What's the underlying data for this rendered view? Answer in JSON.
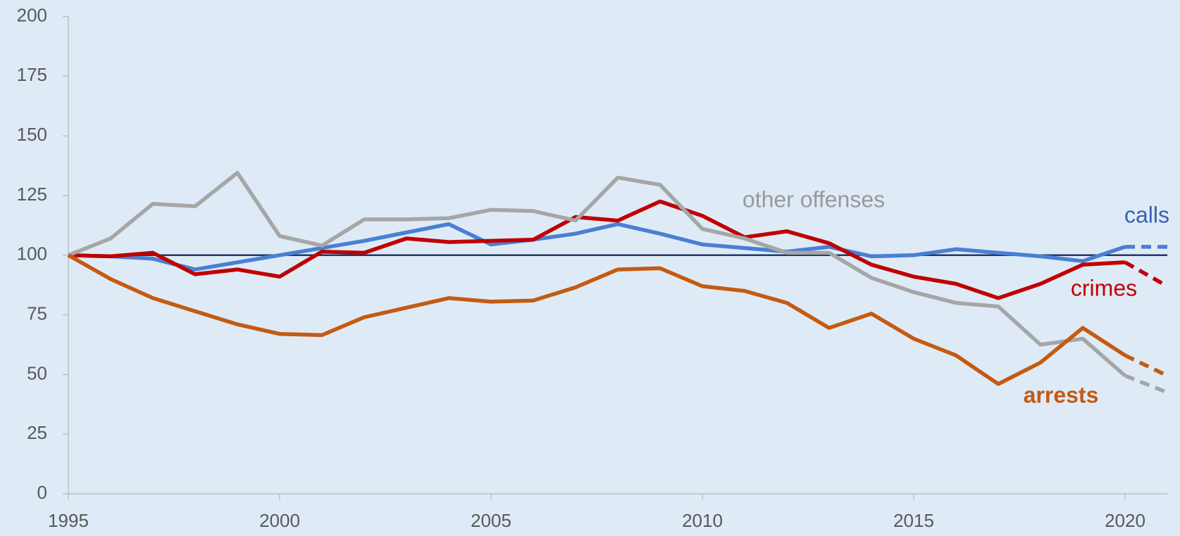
{
  "chart_data": {
    "type": "line",
    "x": [
      1995,
      1996,
      1997,
      1998,
      1999,
      2000,
      2001,
      2002,
      2003,
      2004,
      2005,
      2006,
      2007,
      2008,
      2009,
      2010,
      2011,
      2012,
      2013,
      2014,
      2015,
      2016,
      2017,
      2018,
      2019,
      2020,
      2021
    ],
    "series": [
      {
        "name": "calls",
        "color": "#4a7fd4",
        "label_color": "#3a62b0",
        "label_bold": false,
        "values": [
          100,
          99.5,
          98.5,
          94,
          97,
          100,
          103,
          106,
          109.5,
          113,
          104.5,
          106.5,
          109,
          113,
          109,
          104.5,
          103,
          101.5,
          103.5,
          99.5,
          100,
          102.5,
          101,
          99.5,
          97.5,
          103.5,
          103.5
        ]
      },
      {
        "name": "crimes",
        "color": "#c00000",
        "label_color": "#c00000",
        "label_bold": false,
        "values": [
          100,
          99.5,
          101,
          92,
          94,
          91,
          101.5,
          101,
          107,
          105.5,
          106,
          106.5,
          116,
          114.5,
          122.5,
          116.5,
          107.5,
          110,
          105,
          96,
          91,
          88,
          82,
          88,
          96,
          97,
          87
        ]
      },
      {
        "name": "other offenses",
        "color": "#a6a6a6",
        "label_color": "#999999",
        "label_bold": false,
        "values": [
          100,
          107,
          121.5,
          120.5,
          134.5,
          108,
          104,
          115,
          115,
          115.5,
          119,
          118.5,
          114.5,
          132.5,
          129.5,
          111,
          107,
          101,
          101,
          90.5,
          84.5,
          80,
          78.5,
          62.5,
          65,
          49.5,
          42.5
        ]
      },
      {
        "name": "arrests",
        "color": "#c55a11",
        "label_color": "#c55a11",
        "label_bold": true,
        "values": [
          100,
          90,
          82,
          76.5,
          71,
          67,
          66.5,
          74,
          78,
          82,
          80.5,
          81,
          86.5,
          94,
          94.5,
          87,
          85,
          80,
          69.5,
          75.5,
          65,
          58,
          46,
          55,
          69.5,
          58,
          49.5
        ]
      }
    ],
    "dashed_from_x": 2020,
    "reference_line": 100,
    "reference_color": "#1f3864",
    "xlim": [
      1995,
      2021
    ],
    "xticks": [
      1995,
      2000,
      2005,
      2010,
      2015,
      2020
    ],
    "ylim": [
      0,
      200
    ],
    "yticks": [
      0,
      25,
      50,
      75,
      100,
      125,
      150,
      175,
      200
    ]
  }
}
